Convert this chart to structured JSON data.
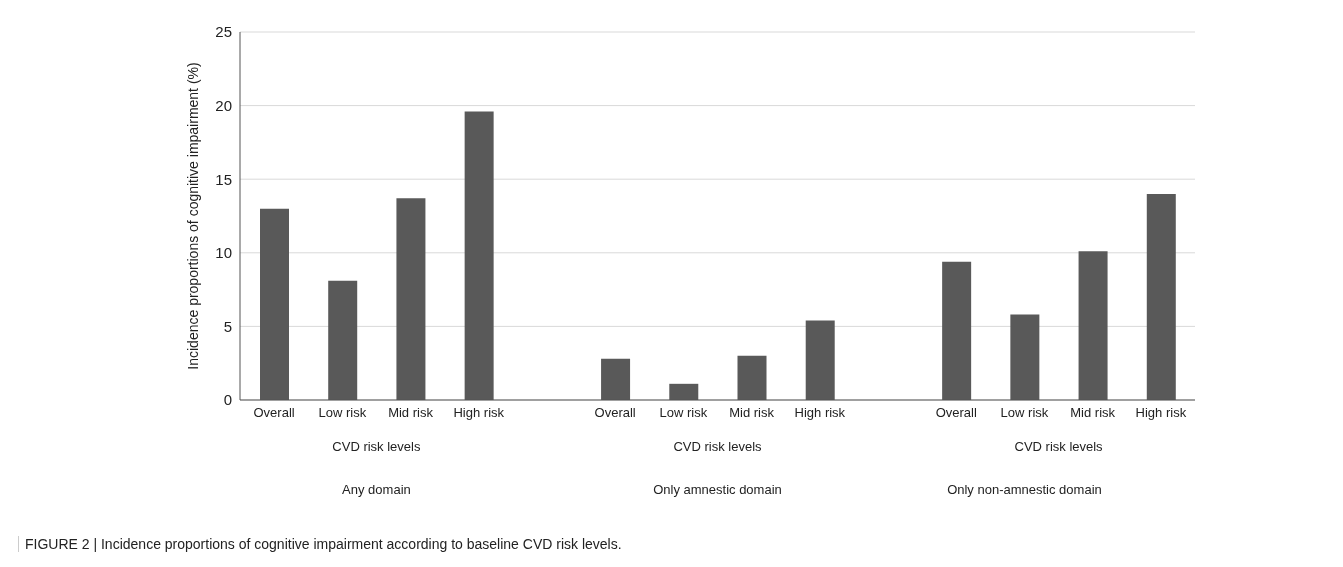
{
  "chart_data": {
    "type": "bar",
    "categories": [
      "Overall",
      "Low risk",
      "Mid risk",
      "High risk",
      null,
      "Overall",
      "Low risk",
      "Mid risk",
      "High risk",
      null,
      "Overall",
      "Low risk",
      "Mid risk",
      "High risk"
    ],
    "values": [
      13.0,
      8.1,
      13.7,
      19.6,
      null,
      2.8,
      1.1,
      3.0,
      5.4,
      null,
      9.4,
      5.8,
      10.1,
      14.0
    ],
    "color": "#595959",
    "ylabel": "Incidence proportions of cognitive impairment (%)",
    "ylim": [
      0,
      25
    ],
    "yticks": [
      0,
      5,
      10,
      15,
      20,
      25
    ],
    "grid": "y",
    "annotations": [
      "CVD risk levels",
      "Any domain",
      "CVD risk levels",
      "Only amnestic domain",
      "CVD risk levels",
      "Only non-amnestic domain",
      "FIGURE 2 | Incidence proportions of cognitive impairment according to baseline CVD risk levels."
    ]
  }
}
